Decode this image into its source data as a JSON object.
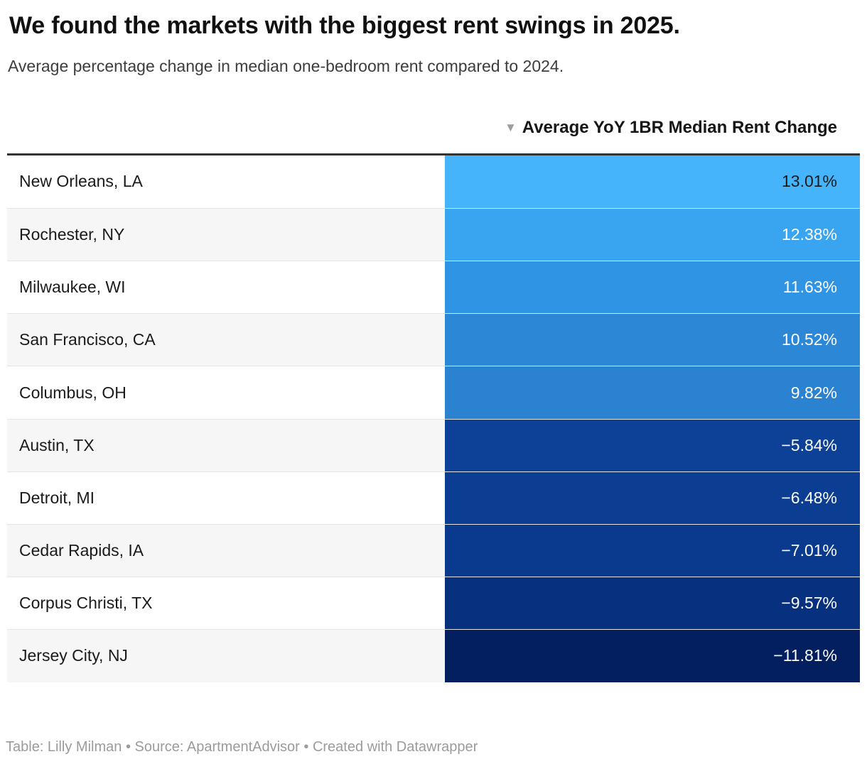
{
  "header": {
    "title": "We found the markets with the biggest rent swings in 2025.",
    "subtitle": "Average percentage change in median one-bedroom rent compared to 2024."
  },
  "table": {
    "sort_icon": "▼",
    "column_header": "Average YoY 1BR Median Rent Change",
    "rows": [
      {
        "market": "New Orleans, LA",
        "value": "13.01%",
        "color": "#45b4fb",
        "text_color": "#1a1a1a"
      },
      {
        "market": "Rochester, NY",
        "value": "12.38%",
        "color": "#39a5f1",
        "text_color": "#ffffff"
      },
      {
        "market": "Milwaukee, WI",
        "value": "11.63%",
        "color": "#3094e4",
        "text_color": "#ffffff"
      },
      {
        "market": "San Francisco, CA",
        "value": "10.52%",
        "color": "#2c87d7",
        "text_color": "#ffffff"
      },
      {
        "market": "Columbus, OH",
        "value": "9.82%",
        "color": "#2a82d0",
        "text_color": "#ffffff"
      },
      {
        "market": "Austin, TX",
        "value": "−5.84%",
        "color": "#0d4097",
        "text_color": "#ffffff"
      },
      {
        "market": "Detroit, MI",
        "value": "−6.48%",
        "color": "#0b3d92",
        "text_color": "#ffffff"
      },
      {
        "market": "Cedar Rapids, IA",
        "value": "−7.01%",
        "color": "#0a3a8d",
        "text_color": "#ffffff"
      },
      {
        "market": "Corpus Christi, TX",
        "value": "−9.57%",
        "color": "#07307e",
        "text_color": "#ffffff"
      },
      {
        "market": "Jersey City, NJ",
        "value": "−11.81%",
        "color": "#041f60",
        "text_color": "#ffffff"
      }
    ]
  },
  "footer": {
    "attribution": "Table: Lilly Milman • Source: ApartmentAdvisor • Created with Datawrapper"
  },
  "chart_data": {
    "type": "table",
    "title": "We found the markets with the biggest rent swings in 2025.",
    "subtitle": "Average percentage change in median one-bedroom rent compared to 2024.",
    "column_header": "Average YoY 1BR Median Rent Change",
    "categories": [
      "New Orleans, LA",
      "Rochester, NY",
      "Milwaukee, WI",
      "San Francisco, CA",
      "Columbus, OH",
      "Austin, TX",
      "Detroit, MI",
      "Cedar Rapids, IA",
      "Corpus Christi, TX",
      "Jersey City, NJ"
    ],
    "values": [
      13.01,
      12.38,
      11.63,
      10.52,
      9.82,
      -5.84,
      -6.48,
      -7.01,
      -9.57,
      -11.81
    ],
    "unit": "%",
    "sort_order": "descending",
    "color_scale": "light blue (highest) to dark navy (lowest)",
    "source": "ApartmentAdvisor",
    "credit": "Lilly Milman"
  }
}
